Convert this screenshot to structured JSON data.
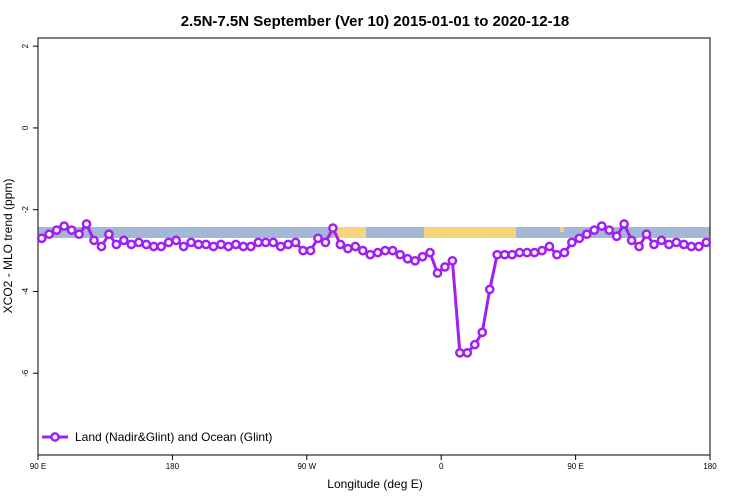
{
  "chart_data": {
    "type": "line",
    "title": "2.5N-7.5N September (Ver 10)   2015-01-01 to 2020-12-18",
    "x_label": "Longitude (deg E)",
    "y_label": "XCO2 - MLO trend (ppm)",
    "xlim": [
      90,
      540
    ],
    "ylim": [
      -8.0,
      2.2
    ],
    "xticks": [
      {
        "value": 90,
        "label": "90 E"
      },
      180,
      {
        "value": 270,
        "label": "90 W"
      },
      {
        "value": 360,
        "label": "0"
      },
      {
        "value": 450,
        "label": "90 E"
      },
      {
        "value": 540,
        "label": "180"
      }
    ],
    "yticks": [
      2,
      0,
      -2,
      -4,
      -6
    ],
    "legend": "bottomleft",
    "x": [
      92.5,
      97.5,
      102.5,
      107.5,
      112.5,
      117.5,
      122.5,
      127.5,
      132.5,
      137.5,
      142.5,
      147.5,
      152.5,
      157.5,
      162.5,
      167.5,
      172.5,
      177.5,
      182.5,
      187.5,
      192.5,
      197.5,
      202.5,
      207.5,
      212.5,
      217.5,
      222.5,
      227.5,
      232.5,
      237.5,
      242.5,
      247.5,
      252.5,
      257.5,
      262.5,
      267.5,
      272.5,
      277.5,
      282.5,
      287.5,
      292.5,
      297.5,
      302.5,
      307.5,
      312.5,
      317.5,
      322.5,
      327.5,
      332.5,
      337.5,
      342.5,
      347.5,
      352.5,
      357.5,
      362.5,
      367.5,
      372.5,
      377.5,
      382.5,
      387.5,
      392.5,
      397.5,
      402.5,
      407.5,
      412.5,
      417.5,
      422.5,
      427.5,
      432.5,
      437.5,
      442.5,
      447.5,
      452.5,
      457.5,
      462.5,
      467.5,
      472.5,
      477.5,
      482.5,
      487.5,
      492.5,
      497.5,
      502.5,
      507.5,
      512.5,
      517.5,
      522.5,
      527.5,
      532.5,
      537.5
    ],
    "series": [
      {
        "name": "Land (Nadir&Glint) and Ocean (Glint)",
        "color": "#a020f0",
        "values": [
          -2.7,
          -2.6,
          -2.5,
          -2.4,
          -2.5,
          -2.6,
          -2.35,
          -2.75,
          -2.9,
          -2.6,
          -2.85,
          -2.75,
          -2.85,
          -2.8,
          -2.85,
          -2.9,
          -2.9,
          -2.8,
          -2.75,
          -2.9,
          -2.8,
          -2.85,
          -2.85,
          -2.9,
          -2.85,
          -2.9,
          -2.85,
          -2.9,
          -2.9,
          -2.8,
          -2.8,
          -2.8,
          -2.9,
          -2.85,
          -2.8,
          -3.0,
          -3.0,
          -2.7,
          -2.8,
          -2.45,
          -2.85,
          -2.95,
          -2.9,
          -3.0,
          -3.1,
          -3.05,
          -3.0,
          -3.0,
          -3.1,
          -3.2,
          -3.25,
          -3.15,
          -3.05,
          -3.55,
          -3.4,
          -3.25,
          -5.5,
          -5.5,
          -5.3,
          -5.0,
          -3.95,
          -3.1,
          -3.1,
          -3.1,
          -3.05,
          -3.05,
          -3.05,
          -3.0,
          -2.9,
          -3.1,
          -3.05,
          -2.8,
          -2.7,
          -2.6,
          -2.5,
          -2.4,
          -2.5,
          -2.65,
          -2.35,
          -2.75,
          -2.9,
          -2.6,
          -2.85,
          -2.75,
          -2.85,
          -2.8,
          -2.85,
          -2.9,
          -2.9,
          -2.8
        ]
      }
    ]
  }
}
